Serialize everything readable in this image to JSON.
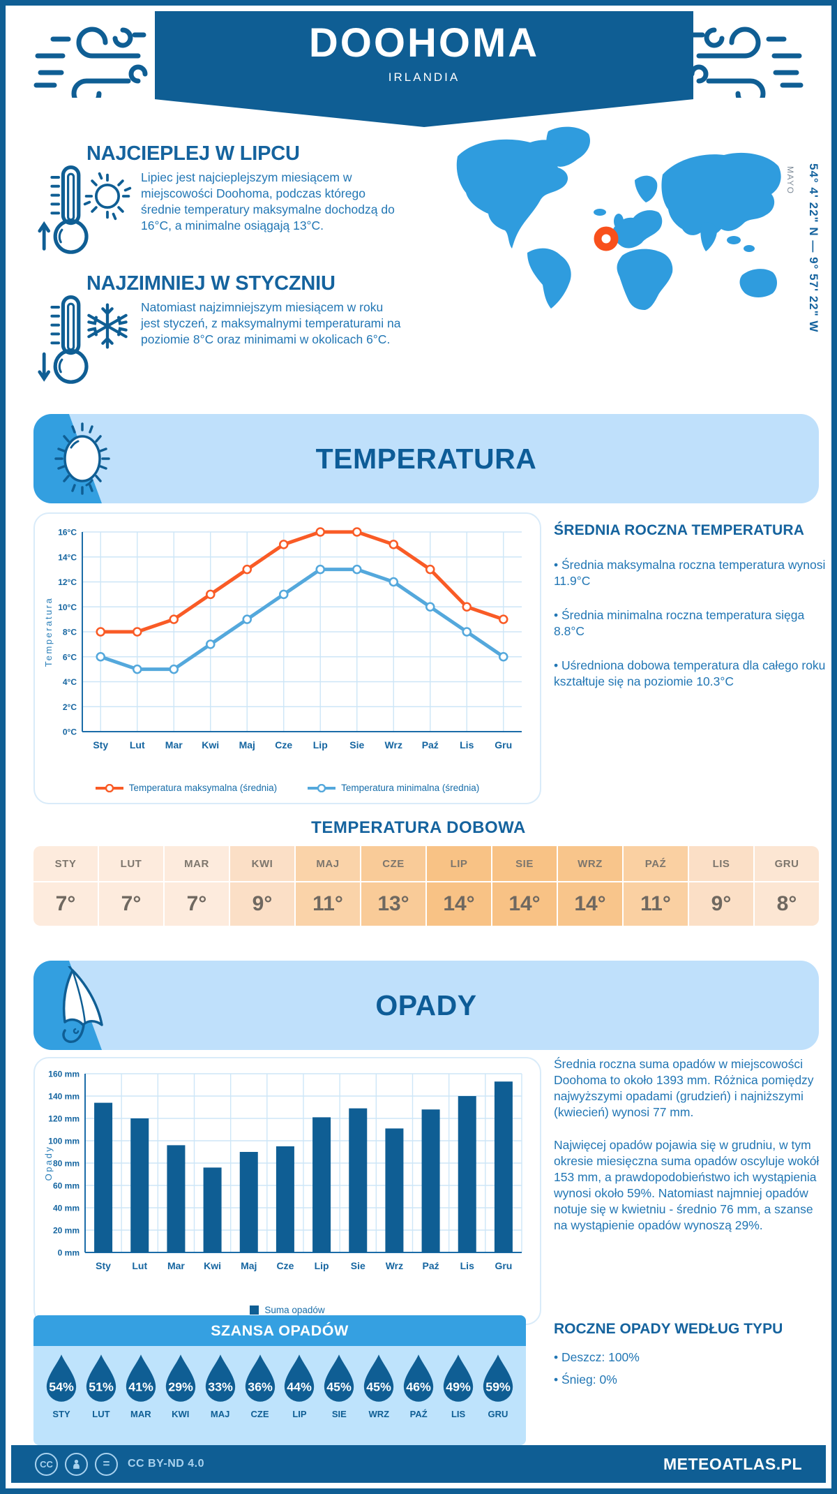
{
  "header": {
    "title": "DOOHOMA",
    "subtitle": "IRLANDIA"
  },
  "geo": {
    "coordinates": "54° 4' 22\" N — 9° 57' 22\" W",
    "region": "MAYO"
  },
  "facts": {
    "warmest": {
      "heading": "NAJCIEPLEJ W LIPCU",
      "body": "Lipiec jest najcieplejszym miesiącem w miejscowości Doohoma, podczas którego średnie temperatury maksymalne dochodzą do 16°C, a minimalne osiągają 13°C."
    },
    "coldest": {
      "heading": "NAJZIMNIEJ W STYCZNIU",
      "body": "Natomiast najzimniejszym miesiącem w roku jest styczeń, z maksymalnymi temperaturami na poziomie 8°C oraz minimami w okolicach 6°C."
    }
  },
  "temperature": {
    "banner_title": "TEMPERATURA",
    "annual_heading": "ŚREDNIA ROCZNA TEMPERATURA",
    "annual_bullets": [
      "• Średnia maksymalna roczna temperatura wynosi 11.9°C",
      "• Średnia minimalna roczna temperatura sięga 8.8°C",
      "• Uśredniona dobowa temperatura dla całego roku kształtuje się na poziomie 10.3°C"
    ],
    "daily_title": "TEMPERATURA DOBOWA",
    "daily_months": [
      "STY",
      "LUT",
      "MAR",
      "KWI",
      "MAJ",
      "CZE",
      "LIP",
      "SIE",
      "WRZ",
      "PAŹ",
      "LIS",
      "GRU"
    ],
    "daily_values": [
      "7°",
      "7°",
      "7°",
      "9°",
      "11°",
      "13°",
      "14°",
      "14°",
      "14°",
      "11°",
      "9°",
      "8°"
    ],
    "daily_colors": [
      "#FDEBDD",
      "#FDEBDD",
      "#FDEBDD",
      "#FBDFC6",
      "#FAD3A9",
      "#F9CB98",
      "#F8C285",
      "#F8C285",
      "#F8C58B",
      "#FAD0A2",
      "#FBDFC6",
      "#FCE6D3"
    ]
  },
  "precipitation": {
    "banner_title": "OPADY",
    "paragraphs": [
      "Średnia roczna suma opadów w miejscowości Doohoma to około 1393 mm. Różnica pomiędzy najwyższymi opadami (grudzień) i najniższymi (kwiecień) wynosi 77 mm.",
      "Najwięcej opadów pojawia się w grudniu, w tym okresie miesięczna suma opadów oscyluje wokół 153 mm, a prawdopodobieństwo ich wystąpienia wynosi około 59%. Natomiast najmniej opadów notuje się w kwietniu - średnio 76 mm, a szanse na wystąpienie opadów wynoszą 29%."
    ],
    "type_heading": "ROCZNE OPADY WEDŁUG TYPU",
    "type_bullets": [
      "• Deszcz: 100%",
      "• Śnieg: 0%"
    ],
    "chance_title": "SZANSA OPADÓW",
    "chance_months": [
      "STY",
      "LUT",
      "MAR",
      "KWI",
      "MAJ",
      "CZE",
      "LIP",
      "SIE",
      "WRZ",
      "PAŹ",
      "LIS",
      "GRU"
    ],
    "chance_values": [
      "54%",
      "51%",
      "41%",
      "29%",
      "33%",
      "36%",
      "44%",
      "45%",
      "45%",
      "46%",
      "49%",
      "59%"
    ]
  },
  "footer": {
    "badge_cc": "CC",
    "badge_nd": "=",
    "license": "CC BY-ND 4.0",
    "brand": "METEOATLAS.PL"
  },
  "colors": {
    "primary_dark_blue": "#0F5E94",
    "heading_blue": "#15639E",
    "body_text_blue": "#2176B4",
    "section_banner_bg": "#BFE0FB",
    "wedge_blue": "#339FE0",
    "map_blue": "#2F9CDE",
    "marker_orange": "#F8501C",
    "chance_header_blue": "#35A0E1",
    "chance_body_bg": "#BEE3FC",
    "grid_light_blue": "#CDE6F7"
  },
  "chart_data": [
    {
      "type": "line",
      "categories": [
        "Sty",
        "Lut",
        "Mar",
        "Kwi",
        "Maj",
        "Cze",
        "Lip",
        "Sie",
        "Wrz",
        "Paź",
        "Lis",
        "Gru"
      ],
      "series": [
        {
          "name": "Temperatura maksymalna (średnia)",
          "color": "#F95B26",
          "values": [
            8,
            8,
            9,
            11,
            13,
            15,
            16,
            16,
            15,
            13,
            10,
            9
          ]
        },
        {
          "name": "Temperatura minimalna (średnia)",
          "color": "#54A8DC",
          "values": [
            6,
            5,
            5,
            7,
            9,
            11,
            13,
            13,
            12,
            10,
            8,
            6
          ]
        }
      ],
      "ylabel": "Temperatura",
      "ylim": [
        0,
        16
      ],
      "ytick_step": 2,
      "ytick_suffix": "°C",
      "grid": true,
      "legend_position": "bottom"
    },
    {
      "type": "bar",
      "categories": [
        "Sty",
        "Lut",
        "Mar",
        "Kwi",
        "Maj",
        "Cze",
        "Lip",
        "Sie",
        "Wrz",
        "Paź",
        "Lis",
        "Gru"
      ],
      "series": [
        {
          "name": "Suma opadów",
          "color": "#0F5E94",
          "values": [
            134,
            120,
            96,
            76,
            90,
            95,
            121,
            129,
            111,
            128,
            140,
            153
          ]
        }
      ],
      "ylabel": "Opady",
      "ylim": [
        0,
        160
      ],
      "ytick_step": 20,
      "ytick_suffix": " mm",
      "grid": true,
      "legend_position": "bottom"
    }
  ]
}
